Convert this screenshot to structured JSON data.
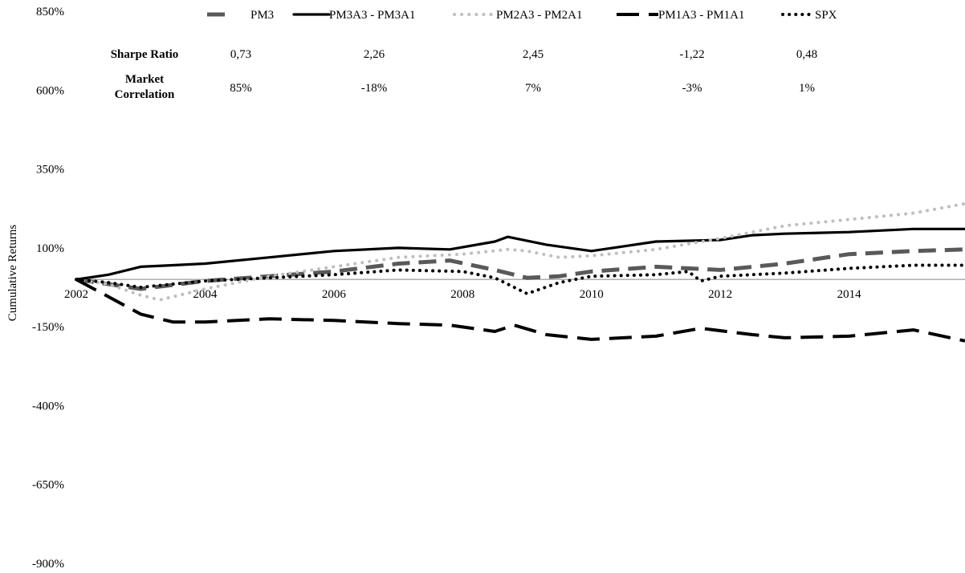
{
  "chart_data": {
    "type": "line",
    "title": "",
    "xlabel": "",
    "ylabel": "Cumulative Returns",
    "xlim": [
      2002,
      2015.8
    ],
    "ylim": [
      -900,
      850
    ],
    "x_ticks": [
      "2002",
      "2004",
      "2006",
      "2008",
      "2010",
      "2012",
      "2014"
    ],
    "y_ticks": [
      "850%",
      "600%",
      "350%",
      "100%",
      "-150%",
      "-400%",
      "-650%",
      "-900%"
    ],
    "y_tick_values": [
      850,
      600,
      350,
      100,
      -150,
      -400,
      -650,
      -900
    ],
    "legend_position": "top",
    "colors": {
      "PM3": "#595959",
      "PM3A3 - PM3A1": "#000000",
      "PM2A3 - PM2A1": "#bfbfbf",
      "PM1A3 - PM1A1": "#000000",
      "SPX": "#000000"
    },
    "series": [
      {
        "name": "PM3",
        "style": "dashed",
        "x": [
          2002,
          2003,
          2004,
          2005,
          2006,
          2007,
          2007.8,
          2008.5,
          2009,
          2009.5,
          2010,
          2011,
          2012,
          2013,
          2014,
          2015,
          2015.8
        ],
        "y": [
          0,
          -30,
          -5,
          10,
          25,
          50,
          60,
          30,
          5,
          10,
          25,
          40,
          30,
          50,
          80,
          90,
          95
        ]
      },
      {
        "name": "PM3A3 - PM3A1",
        "style": "solid",
        "x": [
          2002,
          2002.5,
          2003,
          2003.5,
          2004,
          2005,
          2006,
          2007,
          2007.8,
          2008.5,
          2008.7,
          2009.3,
          2010,
          2010.5,
          2011,
          2012,
          2012.5,
          2013,
          2014,
          2015,
          2015.8
        ],
        "y": [
          0,
          15,
          40,
          45,
          50,
          70,
          90,
          100,
          95,
          120,
          135,
          110,
          90,
          105,
          120,
          125,
          140,
          145,
          150,
          160,
          160
        ]
      },
      {
        "name": "PM2A3 - PM2A1",
        "style": "dotted",
        "x": [
          2002,
          2002.5,
          2003,
          2003.3,
          2004,
          2005,
          2006,
          2007,
          2008,
          2008.7,
          2009,
          2009.5,
          2010,
          2011,
          2012,
          2013,
          2014,
          2015,
          2015.8
        ],
        "y": [
          0,
          -15,
          -50,
          -65,
          -30,
          10,
          40,
          70,
          80,
          95,
          90,
          70,
          75,
          95,
          130,
          170,
          190,
          210,
          240
        ]
      },
      {
        "name": "PM1A3 - PM1A1",
        "style": "dashed",
        "x": [
          2002,
          2002.5,
          2003,
          2003.5,
          2004,
          2005,
          2006,
          2007,
          2007.8,
          2008.5,
          2008.8,
          2009.3,
          2010,
          2011,
          2011.7,
          2012.5,
          2013,
          2014,
          2015,
          2015.8
        ],
        "y": [
          0,
          -55,
          -110,
          -135,
          -135,
          -125,
          -130,
          -140,
          -145,
          -165,
          -145,
          -175,
          -190,
          -180,
          -155,
          -175,
          -185,
          -180,
          -160,
          -195
        ]
      },
      {
        "name": "SPX",
        "style": "dotted",
        "x": [
          2002,
          2002.5,
          2003,
          2004,
          2005,
          2006,
          2007,
          2008,
          2008.5,
          2009,
          2009.5,
          2010,
          2011,
          2011.5,
          2011.7,
          2012,
          2013,
          2014,
          2015,
          2015.8
        ],
        "y": [
          0,
          -10,
          -25,
          -5,
          5,
          15,
          30,
          25,
          5,
          -45,
          -10,
          10,
          15,
          25,
          -5,
          10,
          20,
          35,
          45,
          45
        ]
      }
    ],
    "stats_table": {
      "labels": [
        "Sharpe Ratio",
        "Market Correlation"
      ],
      "label_lines": [
        [
          "Sharpe Ratio"
        ],
        [
          "Market",
          "Correlation"
        ]
      ],
      "rows": [
        [
          "0,73",
          "2,26",
          "2,45",
          "-1,22",
          "0,48"
        ],
        [
          "85%",
          "-18%",
          "7%",
          "-3%",
          "1%"
        ]
      ]
    }
  }
}
